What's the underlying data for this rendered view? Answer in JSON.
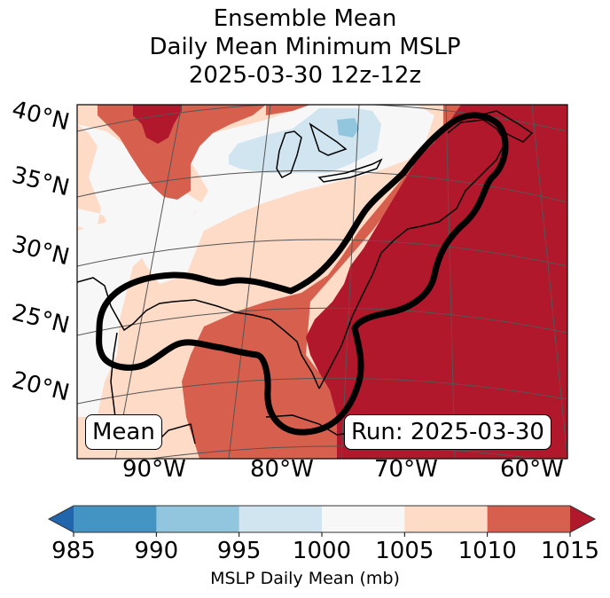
{
  "chart_data": {
    "type": "heatmap",
    "title": [
      "Ensemble Mean",
      "Daily Mean Minimum MSLP",
      "2025-03-30 12z-12z"
    ],
    "projection": "Lambert conformal map, eastern North America / Gulf of Mexico / western Atlantic",
    "lat_ticks": [
      "40°N",
      "35°N",
      "30°N",
      "25°N",
      "20°N"
    ],
    "lon_ticks": [
      "90°W",
      "80°W",
      "70°W",
      "60°W"
    ],
    "extent": {
      "lon": [
        -96,
        -58
      ],
      "lat": [
        17,
        42
      ]
    },
    "grid": true,
    "colorbar": {
      "label": "MSLP Daily Mean (mb)",
      "ticks": [
        985,
        990,
        995,
        1000,
        1005,
        1010,
        1015
      ],
      "extend": "both",
      "bins": [
        {
          "range": "<985",
          "color": "#2166ac"
        },
        {
          "range": "985-990",
          "color": "#4393c3"
        },
        {
          "range": "990-995",
          "color": "#92c5de"
        },
        {
          "range": "995-1000",
          "color": "#d1e5f0"
        },
        {
          "range": "1000-1005",
          "color": "#f7f7f7"
        },
        {
          "range": "1005-1010",
          "color": "#fddbc7"
        },
        {
          "range": "1010-1015",
          "color": "#d6604d"
        },
        {
          "range": ">1015",
          "color": "#b2182b"
        }
      ],
      "orientation": "horizontal",
      "placement": "bottom"
    },
    "fields": [
      {
        "region": "Western Atlantic east of ~72°W",
        "bin": ">1015"
      },
      {
        "region": "Southeast US coast / Florida / Cuba",
        "bin": "1010-1015"
      },
      {
        "region": "Northern Gulf coast / Texas / Mexico",
        "bin": "1005-1010"
      },
      {
        "region": "Ohio Valley / Upper Midwest",
        "bin": "1000-1005"
      },
      {
        "region": "Great Lakes",
        "bin": "995-1000"
      },
      {
        "region": "Lake Huron / Georgian Bay small patch",
        "bin": "990-995"
      },
      {
        "region": "Northern Plains top-left",
        "bin": ">1015"
      }
    ],
    "contour": {
      "description": "Thick black outlined region from Gulf of Mexico through Florida and up the US East Coast to Nova Scotia",
      "color": "#000000"
    },
    "annotations": [
      "Mean",
      "Run: 2025-03-30"
    ]
  },
  "labels": {
    "mean_box": "Mean",
    "run_box": "Run: 2025-03-30"
  }
}
